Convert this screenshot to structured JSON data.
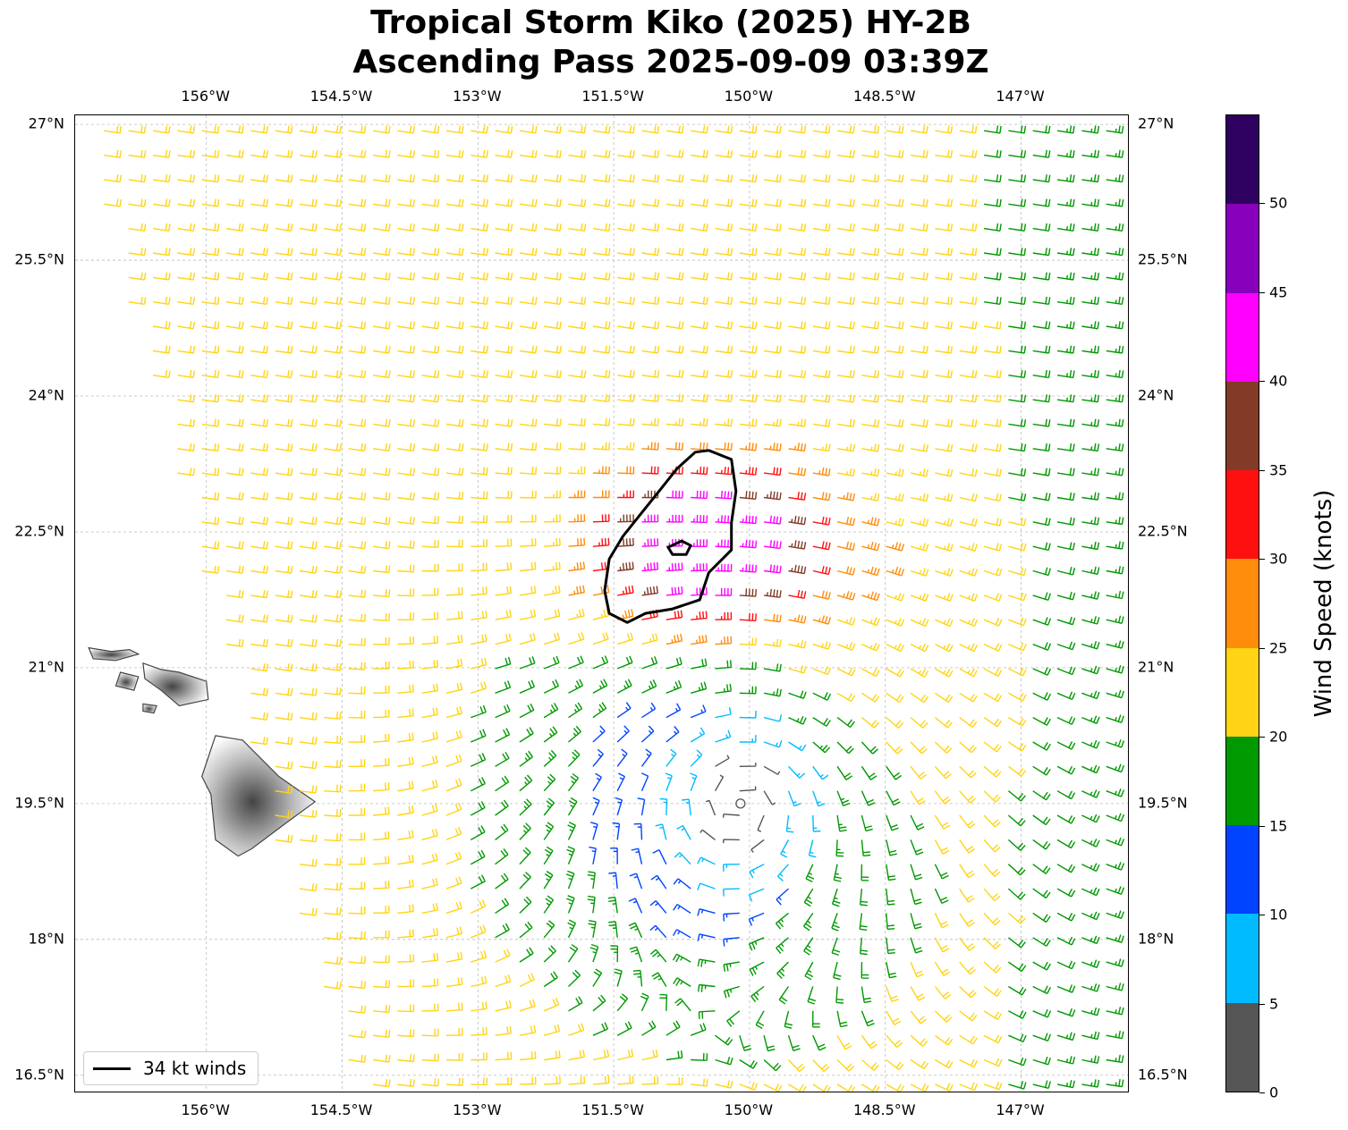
{
  "title": {
    "line1": "Tropical Storm Kiko (2025) HY-2B",
    "line2": "Ascending Pass 2025-09-09 03:39Z"
  },
  "map": {
    "lon_range": [
      -157.45,
      -145.8
    ],
    "lat_range": [
      16.3,
      27.1
    ],
    "lon_ticks": [
      "156°W",
      "154.5°W",
      "153°W",
      "151.5°W",
      "150°W",
      "148.5°W",
      "147°W"
    ],
    "lon_tick_values": [
      -156,
      -154.5,
      -153,
      -151.5,
      -150,
      -148.5,
      -147
    ],
    "lat_ticks": [
      "27°N",
      "25.5°N",
      "24°N",
      "22.5°N",
      "21°N",
      "19.5°N",
      "18°N",
      "16.5°N"
    ],
    "lat_tick_values": [
      27,
      25.5,
      24,
      22.5,
      21,
      19.5,
      18,
      16.5
    ],
    "gridlines": true,
    "storm_center": {
      "lon": -150.1,
      "lat": 19.5
    },
    "contour_34kt_outer": [
      [
        -150.45,
        23.4
      ],
      [
        -150.2,
        23.3
      ],
      [
        -150.15,
        22.95
      ],
      [
        -150.2,
        22.6
      ],
      [
        -150.2,
        22.3
      ],
      [
        -150.45,
        22.05
      ],
      [
        -150.55,
        21.75
      ],
      [
        -150.85,
        21.65
      ],
      [
        -151.15,
        21.6
      ],
      [
        -151.35,
        21.5
      ],
      [
        -151.55,
        21.6
      ],
      [
        -151.6,
        21.85
      ],
      [
        -151.55,
        22.2
      ],
      [
        -151.4,
        22.45
      ],
      [
        -151.2,
        22.7
      ],
      [
        -151.0,
        22.95
      ],
      [
        -150.8,
        23.2
      ],
      [
        -150.6,
        23.38
      ]
    ],
    "contour_34kt_inner": [
      [
        -150.75,
        22.4
      ],
      [
        -150.65,
        22.35
      ],
      [
        -150.7,
        22.25
      ],
      [
        -150.85,
        22.25
      ],
      [
        -150.9,
        22.33
      ]
    ]
  },
  "legend": {
    "label": "34 kt winds",
    "position": "lower-left"
  },
  "colorbar": {
    "title": "Wind Speed (knots)",
    "tick_labels": [
      "0",
      "5",
      "10",
      "15",
      "20",
      "25",
      "30",
      "35",
      "40",
      "45",
      "50"
    ],
    "tick_values": [
      0,
      5,
      10,
      15,
      20,
      25,
      30,
      35,
      40,
      45,
      50
    ],
    "range": [
      0,
      55
    ],
    "colors": [
      "#555555",
      "#00bbff",
      "#0044ff",
      "#009900",
      "#ffd414",
      "#ff8c0a",
      "#ff1010",
      "#813b27",
      "#ff00ff",
      "#8800bb",
      "#2e0060"
    ]
  },
  "islands_labels": [],
  "land_color": "#777777"
}
